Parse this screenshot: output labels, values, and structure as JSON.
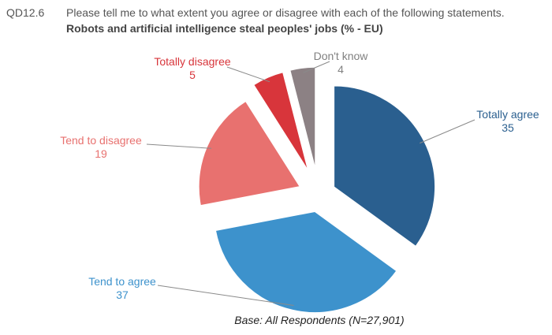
{
  "header": {
    "code": "QD12.6",
    "question": "Please tell me to what extent you agree or disagree with each of the following statements.",
    "subtitle": "Robots and artificial intelligence steal peoples' jobs (% - EU)"
  },
  "footer": {
    "base": "Base: All Respondents (N=27,901)"
  },
  "chart_data": {
    "type": "pie",
    "categories": [
      "Totally agree",
      "Tend to agree",
      "Tend to disagree",
      "Totally disagree",
      "Don't know"
    ],
    "values": [
      35,
      37,
      19,
      5,
      4
    ],
    "colors": [
      "#2a5f8f",
      "#3d92cc",
      "#e8716f",
      "#d8353b",
      "#8c8184"
    ],
    "label_colors": [
      "#2a5f8f",
      "#3d92cc",
      "#e8716f",
      "#d8353b",
      "#808080"
    ],
    "exploded": true,
    "legend": "none"
  }
}
